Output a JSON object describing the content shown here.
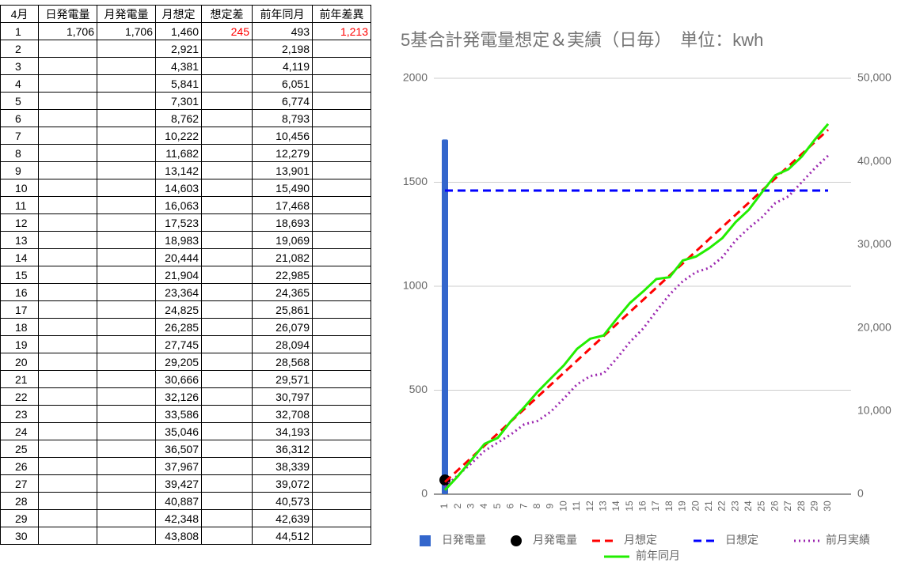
{
  "table": {
    "header": [
      "4月",
      "日発電量",
      "月発電量",
      "月想定",
      "想定差",
      "前年同月",
      "前年差異"
    ],
    "rows": [
      [
        "1",
        "1,706",
        "1,706",
        "1,460",
        "245",
        "493",
        "1,213"
      ],
      [
        "2",
        null,
        null,
        "2,921",
        null,
        "2,198",
        null
      ],
      [
        "3",
        null,
        null,
        "4,381",
        null,
        "4,119",
        null
      ],
      [
        "4",
        null,
        null,
        "5,841",
        null,
        "6,051",
        null
      ],
      [
        "5",
        null,
        null,
        "7,301",
        null,
        "6,774",
        null
      ],
      [
        "6",
        null,
        null,
        "8,762",
        null,
        "8,793",
        null
      ],
      [
        "7",
        null,
        null,
        "10,222",
        null,
        "10,456",
        null
      ],
      [
        "8",
        null,
        null,
        "11,682",
        null,
        "12,279",
        null
      ],
      [
        "9",
        null,
        null,
        "13,142",
        null,
        "13,901",
        null
      ],
      [
        "10",
        null,
        null,
        "14,603",
        null,
        "15,490",
        null
      ],
      [
        "11",
        null,
        null,
        "16,063",
        null,
        "17,468",
        null
      ],
      [
        "12",
        null,
        null,
        "17,523",
        null,
        "18,693",
        null
      ],
      [
        "13",
        null,
        null,
        "18,983",
        null,
        "19,069",
        null
      ],
      [
        "14",
        null,
        null,
        "20,444",
        null,
        "21,082",
        null
      ],
      [
        "15",
        null,
        null,
        "21,904",
        null,
        "22,985",
        null
      ],
      [
        "16",
        null,
        null,
        "23,364",
        null,
        "24,365",
        null
      ],
      [
        "17",
        null,
        null,
        "24,825",
        null,
        "25,861",
        null
      ],
      [
        "18",
        null,
        null,
        "26,285",
        null,
        "26,079",
        null
      ],
      [
        "19",
        null,
        null,
        "27,745",
        null,
        "28,094",
        null
      ],
      [
        "20",
        null,
        null,
        "29,205",
        null,
        "28,568",
        null
      ],
      [
        "21",
        null,
        null,
        "30,666",
        null,
        "29,571",
        null
      ],
      [
        "22",
        null,
        null,
        "32,126",
        null,
        "30,797",
        null
      ],
      [
        "23",
        null,
        null,
        "33,586",
        null,
        "32,708",
        null
      ],
      [
        "24",
        null,
        null,
        "35,046",
        null,
        "34,193",
        null
      ],
      [
        "25",
        null,
        null,
        "36,507",
        null,
        "36,312",
        null
      ],
      [
        "26",
        null,
        null,
        "37,967",
        null,
        "38,339",
        null
      ],
      [
        "27",
        null,
        null,
        "39,427",
        null,
        "39,072",
        null
      ],
      [
        "28",
        null,
        null,
        "40,887",
        null,
        "40,573",
        null
      ],
      [
        "29",
        null,
        null,
        "42,348",
        null,
        "42,639",
        null
      ],
      [
        "30",
        null,
        null,
        "43,808",
        null,
        "44,512",
        null
      ]
    ]
  },
  "chart_data": {
    "type": "combo",
    "title": "5基合計発電量想定＆実績（日毎）　単位：kwh",
    "categories": [
      "1",
      "2",
      "3",
      "4",
      "5",
      "6",
      "7",
      "8",
      "9",
      "10",
      "11",
      "12",
      "13",
      "14",
      "15",
      "16",
      "17",
      "18",
      "19",
      "20",
      "21",
      "22",
      "23",
      "24",
      "25",
      "26",
      "27",
      "28",
      "29",
      "30"
    ],
    "ylim": [
      0,
      2000
    ],
    "yticks": [
      0,
      500,
      1000,
      1500,
      2000
    ],
    "y2lim": [
      0,
      50000
    ],
    "y2ticks": [
      0,
      {
        "value": 10000,
        "label": "10,000"
      },
      {
        "value": 20000,
        "label": "20,000"
      },
      {
        "value": 30000,
        "label": "30,000"
      },
      {
        "value": 40000,
        "label": "40,000"
      },
      {
        "value": 50000,
        "label": "50,000"
      }
    ],
    "grid": true,
    "series": [
      {
        "name": "日発電量",
        "type": "bar",
        "color": "#3366cc",
        "values": [
          1706,
          null,
          null,
          null,
          null,
          null,
          null,
          null,
          null,
          null,
          null,
          null,
          null,
          null,
          null,
          null,
          null,
          null,
          null,
          null,
          null,
          null,
          null,
          null,
          null,
          null,
          null,
          null,
          null,
          null
        ]
      },
      {
        "name": "月発電量",
        "type": "scatter",
        "axis": "y2",
        "color": "#000000",
        "values": [
          1706,
          null,
          null,
          null,
          null,
          null,
          null,
          null,
          null,
          null,
          null,
          null,
          null,
          null,
          null,
          null,
          null,
          null,
          null,
          null,
          null,
          null,
          null,
          null,
          null,
          null,
          null,
          null,
          null,
          null
        ]
      },
      {
        "name": "月想定",
        "type": "line",
        "style": "dashed",
        "axis": "y2",
        "color": "#ff0000",
        "values": [
          1460,
          2921,
          4381,
          5841,
          7301,
          8762,
          10222,
          11682,
          13142,
          14603,
          16063,
          17523,
          18983,
          20444,
          21904,
          23364,
          24825,
          26285,
          27745,
          29205,
          30666,
          32126,
          33586,
          35046,
          36507,
          37967,
          39427,
          40887,
          42348,
          43808
        ]
      },
      {
        "name": "日想定",
        "type": "line",
        "style": "dashed",
        "color": "#0000ff",
        "values": [
          1460,
          1460,
          1460,
          1460,
          1460,
          1460,
          1460,
          1460,
          1460,
          1460,
          1460,
          1460,
          1460,
          1460,
          1460,
          1460,
          1460,
          1460,
          1460,
          1460,
          1460,
          1460,
          1460,
          1460,
          1460,
          1460,
          1460,
          1460,
          1460,
          1460
        ]
      },
      {
        "name": "前月実績",
        "type": "line",
        "style": "dotted",
        "axis": "y2",
        "color": "#9c27b0",
        "values": [
          900,
          2300,
          3700,
          5200,
          6200,
          7200,
          8400,
          8800,
          9900,
          11500,
          13200,
          14200,
          14500,
          16300,
          18300,
          19900,
          22000,
          24000,
          25600,
          26700,
          27200,
          28500,
          30500,
          32000,
          33300,
          35000,
          35800,
          37500,
          39200,
          40700
        ]
      },
      {
        "name": "前年同月",
        "type": "line",
        "style": "solid",
        "axis": "y2",
        "color": "#22ee00",
        "values": [
          493,
          2198,
          4119,
          6051,
          6774,
          8793,
          10456,
          12279,
          13901,
          15490,
          17468,
          18693,
          19069,
          21082,
          22985,
          24365,
          25861,
          26079,
          28094,
          28568,
          29571,
          30797,
          32708,
          34193,
          36312,
          38339,
          39072,
          40573,
          42639,
          44512
        ]
      }
    ]
  }
}
